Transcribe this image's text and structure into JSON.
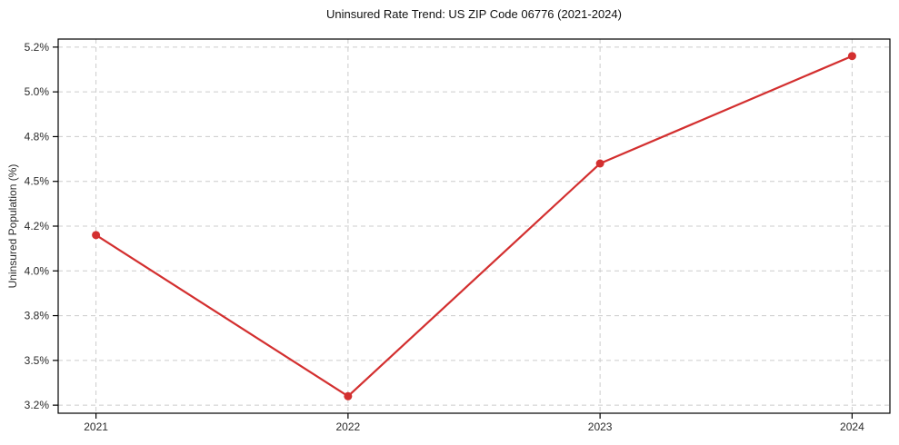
{
  "chart": {
    "title": "Uninsured Rate Trend: US ZIP Code 06776 (2021-2024)",
    "ylabel": "Uninsured Population (%)"
  },
  "chart_data": {
    "type": "line",
    "title": "Uninsured Rate Trend: US ZIP Code 06776 (2021-2024)",
    "xlabel": "",
    "ylabel": "Uninsured Population (%)",
    "x": [
      2021,
      2022,
      2023,
      2024
    ],
    "values": [
      4.2,
      3.3,
      4.6,
      5.2
    ],
    "series_name": "Uninsured rate",
    "xtick_labels": [
      "2021",
      "2022",
      "2023",
      "2024"
    ],
    "ytick_values": [
      3.25,
      3.5,
      3.75,
      4.0,
      4.25,
      4.5,
      4.75,
      5.0,
      5.25
    ],
    "ytick_labels": [
      "3.2%",
      "3.5%",
      "3.8%",
      "4.0%",
      "4.2%",
      "4.5%",
      "4.8%",
      "5.0%",
      "5.2%"
    ],
    "xlim": [
      2020.85,
      2024.15
    ],
    "ylim": [
      3.205,
      5.295
    ],
    "grid": true,
    "grid_style": "dashed",
    "legend": false,
    "line_color": "#d32f2f",
    "marker": "circle",
    "grid_color": "#cccccc",
    "spine_color": "#000000",
    "tick_label_color": "#2b2b2b"
  }
}
